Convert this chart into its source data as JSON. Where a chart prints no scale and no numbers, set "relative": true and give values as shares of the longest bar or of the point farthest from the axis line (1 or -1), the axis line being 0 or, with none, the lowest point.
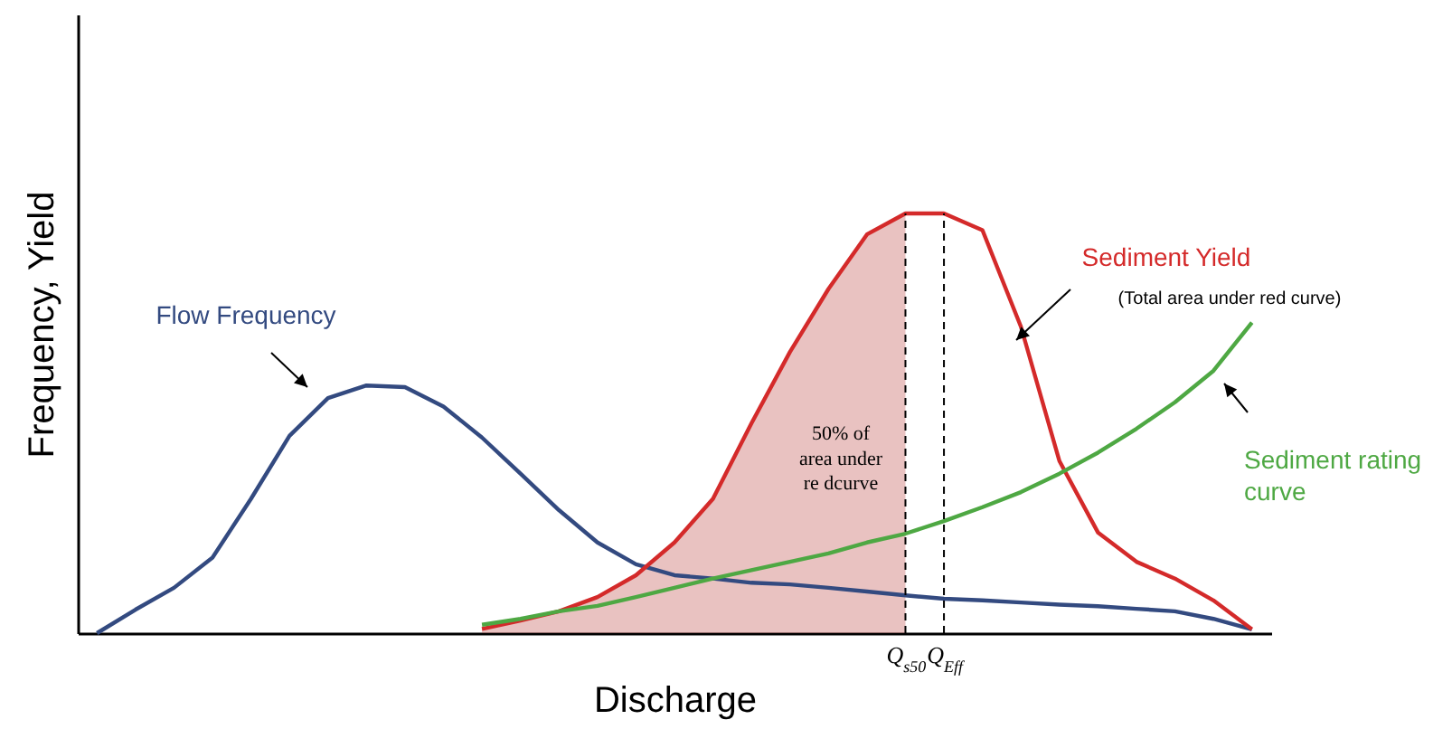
{
  "chart_data": {
    "type": "line",
    "relative": true,
    "xlabel": "Discharge",
    "ylabel": "Frequency, Yield",
    "categories": [
      null,
      null,
      null,
      null,
      null,
      null,
      null,
      null,
      null,
      null,
      null,
      null,
      null,
      null,
      null,
      null,
      null,
      null,
      null,
      null,
      null,
      "Q$_{s50}$",
      "Q$_{Eff}$",
      null,
      null,
      null,
      null,
      null,
      null,
      null,
      null
    ],
    "series": [
      {
        "name": "Flow Frequency",
        "color": "#334a80",
        "values": [
          0,
          0.056,
          0.108,
          0.18,
          0.32,
          0.47,
          0.56,
          0.59,
          0.586,
          0.54,
          0.466,
          0.38,
          0.293,
          0.216,
          0.164,
          0.138,
          0.13,
          0.12,
          0.116,
          0.108,
          0.099,
          0.09,
          0.082,
          0.078,
          0.073,
          0.068,
          0.064,
          0.058,
          0.052,
          0.034,
          0.009
        ]
      },
      {
        "name": "Sediment Yield",
        "color": "#d42a2a",
        "values": [
          null,
          null,
          null,
          null,
          null,
          null,
          null,
          null,
          null,
          null,
          0.01,
          0.03,
          0.052,
          0.086,
          0.138,
          0.216,
          0.32,
          0.5,
          0.67,
          0.82,
          0.95,
          1,
          1,
          0.96,
          0.73,
          0.41,
          0.24,
          0.17,
          0.13,
          0.078,
          0.009
        ]
      },
      {
        "name": "Sediment rating curve",
        "color": "#4ea843",
        "values": [
          null,
          null,
          null,
          null,
          null,
          null,
          null,
          null,
          null,
          null,
          0.02,
          0.034,
          0.052,
          0.065,
          0.086,
          0.108,
          0.13,
          0.15,
          0.17,
          0.19,
          0.216,
          0.237,
          0.267,
          0.3,
          0.336,
          0.38,
          0.43,
          0.487,
          0.55,
          0.625,
          0.74
        ]
      },
      {
        "type": "area",
        "color": "#c0504d",
        "values": [
          null,
          null,
          null,
          null,
          null,
          null,
          null,
          null,
          null,
          null,
          0.01,
          0.03,
          0.052,
          0.086,
          0.138,
          0.216,
          0.32,
          0.5,
          0.67,
          0.82,
          0.95,
          1,
          null,
          null,
          null,
          null,
          null,
          null,
          null,
          null,
          null
        ]
      }
    ],
    "ref_lines": [
      {
        "axis": "x",
        "value": "Q$_{s50}$",
        "line_style": "dashed"
      },
      {
        "axis": "x",
        "value": "Q$_{Eff}$",
        "line_style": "dashed"
      }
    ],
    "annotations": [
      "(Total area under red curve)",
      "50% of\narea under\nre dcurve"
    ]
  }
}
